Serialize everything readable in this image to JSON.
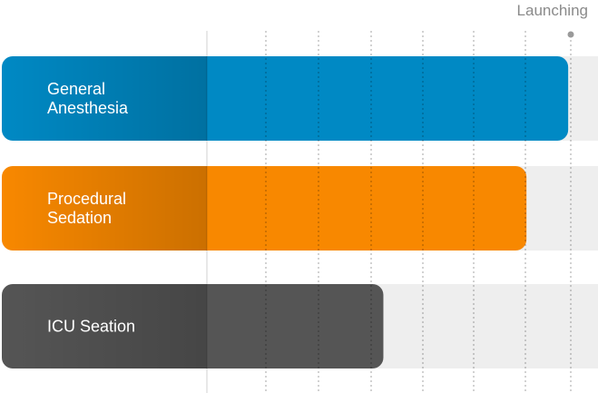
{
  "chart_data": {
    "type": "bar",
    "orientation": "horizontal",
    "milestone_label": "Launching",
    "xlim": [
      0,
      100
    ],
    "grid": true,
    "categories": [
      [
        "General",
        "Anesthesia"
      ],
      [
        "Procedural",
        "Sedation"
      ],
      [
        "ICU Seation"
      ]
    ],
    "values": [
      95,
      88,
      64
    ],
    "colors": [
      "#0089C4",
      "#F88800",
      "#555555"
    ],
    "track_color": "#EEEEEE"
  }
}
